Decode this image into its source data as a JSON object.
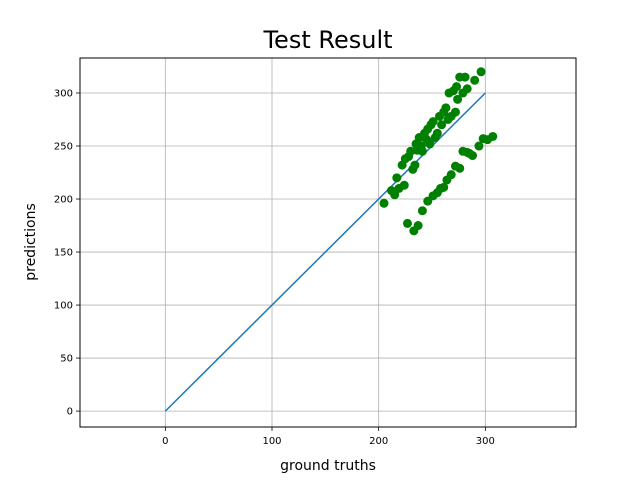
{
  "chart_data": {
    "type": "scatter",
    "title": "Test Result",
    "xlabel": "ground truths",
    "ylabel": "predictions",
    "xlim": [
      -80,
      385
    ],
    "ylim": [
      -15,
      333
    ],
    "xticks": [
      0,
      100,
      200,
      300
    ],
    "yticks": [
      0,
      50,
      100,
      150,
      200,
      250,
      300
    ],
    "grid": true,
    "colors": {
      "points": "#008000",
      "line": "#1f77b4",
      "grid": "#b0b0b0"
    },
    "reference_line": {
      "x": [
        0,
        300
      ],
      "y": [
        0,
        300
      ]
    },
    "points": [
      [
        205,
        196
      ],
      [
        212,
        208
      ],
      [
        215,
        204
      ],
      [
        217,
        220
      ],
      [
        219,
        210
      ],
      [
        222,
        232
      ],
      [
        224,
        213
      ],
      [
        225,
        238
      ],
      [
        228,
        240
      ],
      [
        230,
        245
      ],
      [
        232,
        228
      ],
      [
        234,
        232
      ],
      [
        235,
        252
      ],
      [
        236,
        246
      ],
      [
        238,
        258
      ],
      [
        240,
        250
      ],
      [
        241,
        245
      ],
      [
        243,
        262
      ],
      [
        245,
        256
      ],
      [
        246,
        266
      ],
      [
        248,
        252
      ],
      [
        249,
        270
      ],
      [
        251,
        273
      ],
      [
        253,
        258
      ],
      [
        255,
        262
      ],
      [
        257,
        278
      ],
      [
        259,
        270
      ],
      [
        261,
        282
      ],
      [
        263,
        286
      ],
      [
        265,
        275
      ],
      [
        266,
        300
      ],
      [
        268,
        278
      ],
      [
        270,
        302
      ],
      [
        272,
        282
      ],
      [
        273,
        306
      ],
      [
        274,
        294
      ],
      [
        276,
        315
      ],
      [
        279,
        300
      ],
      [
        281,
        315
      ],
      [
        283,
        304
      ],
      [
        290,
        312
      ],
      [
        296,
        320
      ],
      [
        227,
        177
      ],
      [
        233,
        170
      ],
      [
        237,
        175
      ],
      [
        241,
        189
      ],
      [
        246,
        198
      ],
      [
        251,
        203
      ],
      [
        255,
        206
      ],
      [
        258,
        210
      ],
      [
        261,
        211
      ],
      [
        264,
        218
      ],
      [
        268,
        223
      ],
      [
        272,
        231
      ],
      [
        276,
        229
      ],
      [
        279,
        245
      ],
      [
        283,
        244
      ],
      [
        285,
        243
      ],
      [
        288,
        241
      ],
      [
        294,
        250
      ],
      [
        298,
        257
      ],
      [
        302,
        256
      ],
      [
        307,
        259
      ]
    ]
  }
}
